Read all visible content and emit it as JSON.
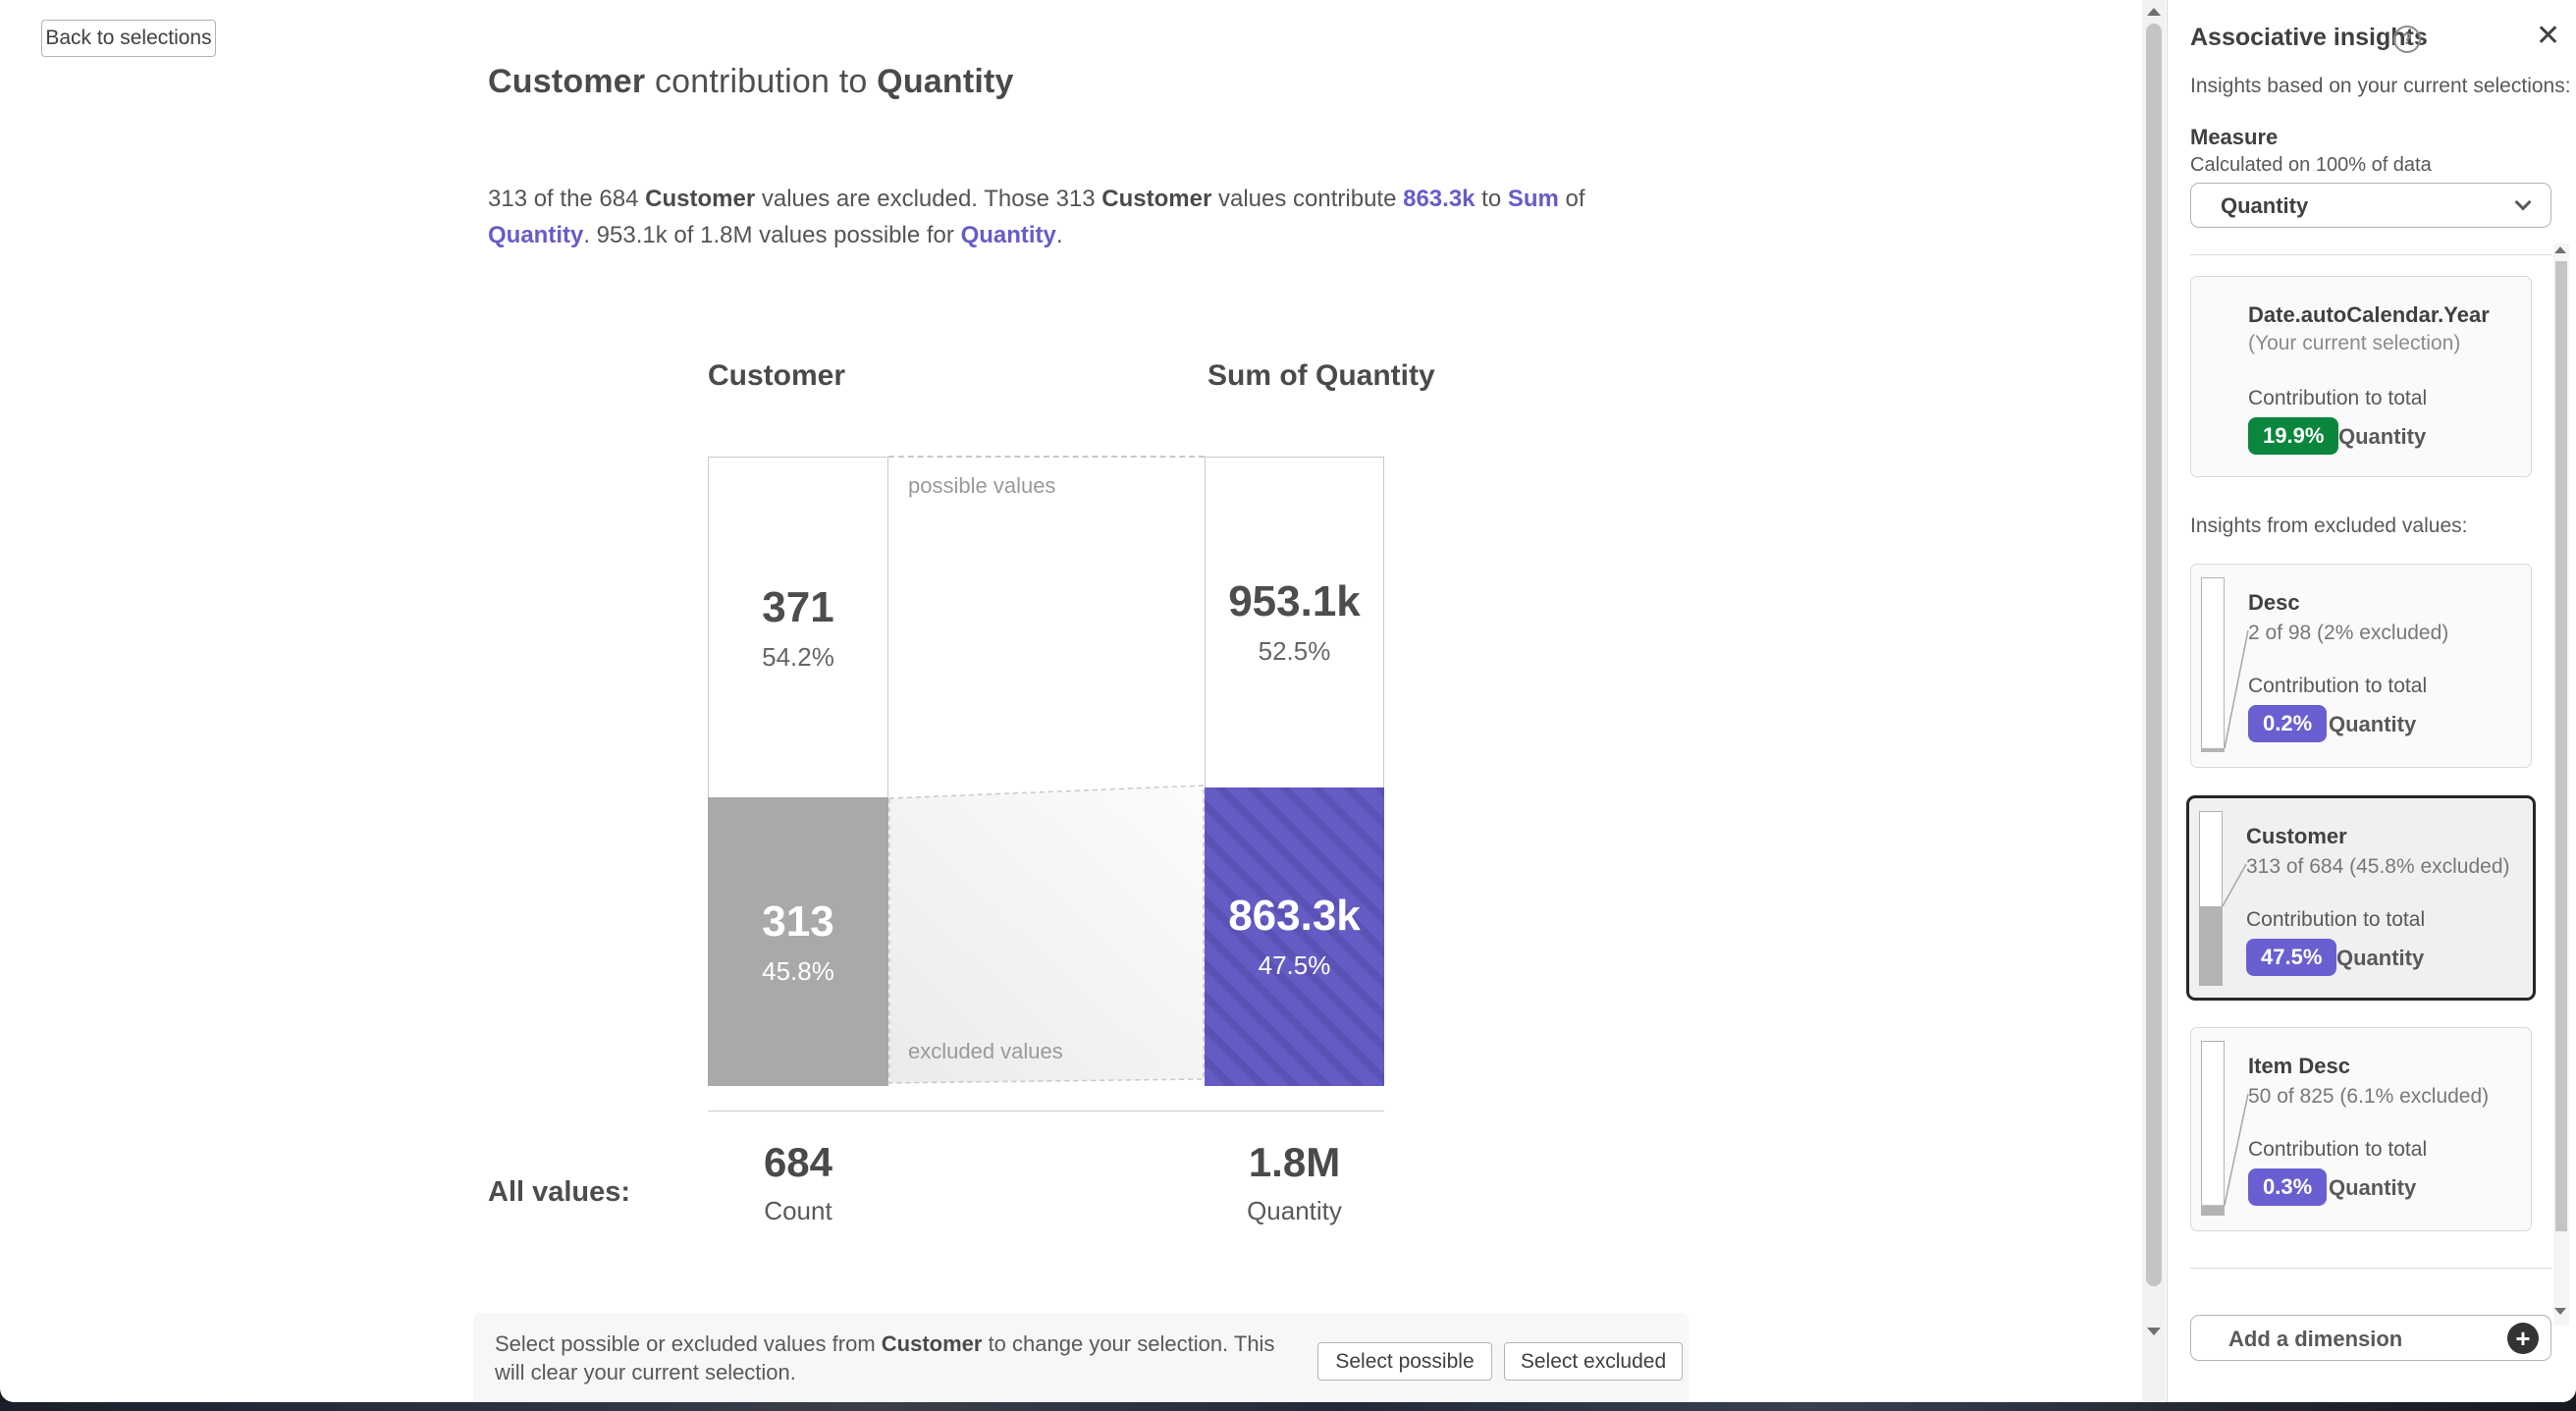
{
  "main": {
    "back_button": "Back to selections",
    "title": {
      "part1": "Customer",
      "part2": " contribution to ",
      "part3": "Quantity"
    },
    "description": {
      "t1": "313 of the 684 ",
      "b1": "Customer",
      "t2": " values are excluded. Those 313 ",
      "b2": "Customer",
      "t3": " values contribute ",
      "link1": "863.3k",
      "t4": " to ",
      "link2": "Sum",
      "t5": " of ",
      "link3": "Quantity",
      "t6": ". 953.1k of 1.8M values possible for ",
      "link4": "Quantity",
      "t7": "."
    },
    "chart": {
      "left_header": "Customer",
      "right_header": "Sum of Quantity",
      "possible_label": "possible values",
      "excluded_label": "excluded values",
      "left": {
        "possible_value": "371",
        "possible_pct": "54.2%",
        "excluded_value": "313",
        "excluded_pct": "45.8%",
        "excluded_num": 45.8
      },
      "right": {
        "possible_value": "953.1k",
        "possible_pct": "52.5%",
        "excluded_value": "863.3k",
        "excluded_pct": "47.5%",
        "excluded_num": 47.5
      },
      "all_values_label": "All values:",
      "count": {
        "value": "684",
        "label": "Count"
      },
      "quantity": {
        "value": "1.8M",
        "label": "Quantity"
      }
    },
    "footer": {
      "m1": "Select possible or excluded values from ",
      "m_bold": "Customer",
      "m2": " to change your selection. This will clear your current selection.",
      "select_possible": "Select possible",
      "select_excluded": "Select excluded"
    }
  },
  "panel": {
    "title": "Associative insights",
    "help_icon": "?",
    "close_icon": "✕",
    "add_icon": "+",
    "subtitle": "Insights based on your current selections:",
    "measure": {
      "label": "Measure",
      "sub": "Calculated on 100% of data",
      "value": "Quantity"
    },
    "current_selection_card": {
      "title": "Date.autoCalendar.Year",
      "subtitle": "(Your current selection)",
      "contribution_label": "Contribution to total",
      "pct": "19.9%",
      "measure": "Quantity"
    },
    "excluded_header": "Insights from excluded values:",
    "cards": [
      {
        "title": "Desc",
        "detail": "2 of 98 (2% excluded)",
        "contribution_label": "Contribution to total",
        "pct": "0.2%",
        "measure": "Quantity",
        "excluded_num": 2,
        "selected": false
      },
      {
        "title": "Customer",
        "detail": "313 of 684 (45.8% excluded)",
        "contribution_label": "Contribution to total",
        "pct": "47.5%",
        "measure": "Quantity",
        "excluded_num": 45.8,
        "selected": true
      },
      {
        "title": "Item Desc",
        "detail": "50 of 825 (6.1% excluded)",
        "contribution_label": "Contribution to total",
        "pct": "0.3%",
        "measure": "Quantity",
        "excluded_num": 6.1,
        "selected": false
      }
    ],
    "add_dimension_label": "Add a dimension",
    "colors": {
      "accent_purple": "#6a5fd1",
      "bar_purple": "#645cc4",
      "bar_gray": "#a9a9a9",
      "badge_green": "#0a873c"
    }
  }
}
